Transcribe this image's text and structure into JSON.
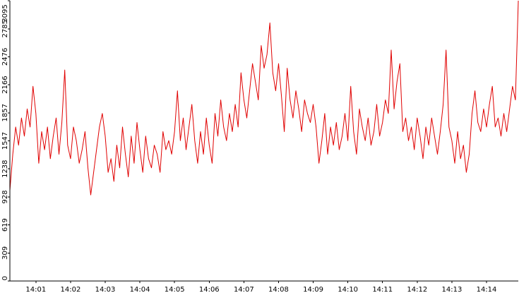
{
  "chart_data": {
    "type": "line",
    "title": "",
    "xlabel": "",
    "ylabel": "",
    "ylim": [
      0,
      3095
    ],
    "xlim": [
      "14:00:15",
      "14:14:55"
    ],
    "grid": false,
    "legend": "none",
    "series_color": "#e00000",
    "y_ticks": [
      0,
      309,
      619,
      928,
      1238,
      1547,
      1857,
      2166,
      2476,
      2785,
      3095
    ],
    "y_tick_labels": [
      "0",
      "309",
      "619",
      "928",
      "1238",
      "1547",
      "1857",
      "2166",
      "2476",
      "2785",
      "3095"
    ],
    "x_ticks": [
      "14:01",
      "14:02",
      "14:03",
      "14:04",
      "14:05",
      "14:06",
      "14:07",
      "14:08",
      "14:09",
      "14:10",
      "14:11",
      "14:12",
      "14:13",
      "14:14"
    ],
    "x_tick_labels": [
      "14:01",
      "14:02",
      "14:03",
      "14:04",
      "14:05",
      "14:06",
      "14:07",
      "14:08",
      "14:09",
      "14:10",
      "14:11",
      "14:12",
      "14:13",
      "14:14"
    ],
    "series": [
      {
        "x": [
          "14:00:15",
          "14:00:20",
          "14:00:25",
          "14:00:30",
          "14:00:35",
          "14:00:40",
          "14:00:45",
          "14:00:50",
          "14:00:55",
          "14:01:00",
          "14:01:05",
          "14:01:10",
          "14:01:15",
          "14:01:20",
          "14:01:25",
          "14:01:30",
          "14:01:35",
          "14:01:40",
          "14:01:45",
          "14:01:50",
          "14:01:55",
          "14:02:00",
          "14:02:05",
          "14:02:10",
          "14:02:15",
          "14:02:20",
          "14:02:25",
          "14:02:30",
          "14:02:35",
          "14:02:40",
          "14:02:45",
          "14:02:50",
          "14:02:55",
          "14:03:00",
          "14:03:05",
          "14:03:10",
          "14:03:15",
          "14:03:20",
          "14:03:25",
          "14:03:30",
          "14:03:35",
          "14:03:40",
          "14:03:45",
          "14:03:50",
          "14:03:55",
          "14:04:00",
          "14:04:05",
          "14:04:10",
          "14:04:15",
          "14:04:20",
          "14:04:25",
          "14:04:30",
          "14:04:35",
          "14:04:40",
          "14:04:45",
          "14:04:50",
          "14:04:55",
          "14:05:00",
          "14:05:05",
          "14:05:10",
          "14:05:15",
          "14:05:20",
          "14:05:25",
          "14:05:30",
          "14:05:35",
          "14:05:40",
          "14:05:45",
          "14:05:50",
          "14:05:55",
          "14:06:00",
          "14:06:05",
          "14:06:10",
          "14:06:15",
          "14:06:20",
          "14:06:25",
          "14:06:30",
          "14:06:35",
          "14:06:40",
          "14:06:45",
          "14:06:50",
          "14:06:55",
          "14:07:00",
          "14:07:05",
          "14:07:10",
          "14:07:15",
          "14:07:20",
          "14:07:25",
          "14:07:30",
          "14:07:35",
          "14:07:40",
          "14:07:45",
          "14:07:50",
          "14:07:55",
          "14:08:00",
          "14:08:05",
          "14:08:10",
          "14:08:15",
          "14:08:20",
          "14:08:25",
          "14:08:30",
          "14:08:35",
          "14:08:40",
          "14:08:45",
          "14:08:50",
          "14:08:55",
          "14:09:00",
          "14:09:05",
          "14:09:10",
          "14:09:15",
          "14:09:20",
          "14:09:25",
          "14:09:30",
          "14:09:35",
          "14:09:40",
          "14:09:45",
          "14:09:50",
          "14:09:55",
          "14:10:00",
          "14:10:05",
          "14:10:10",
          "14:10:15",
          "14:10:20",
          "14:10:25",
          "14:10:30",
          "14:10:35",
          "14:10:40",
          "14:10:45",
          "14:10:50",
          "14:10:55",
          "14:11:00",
          "14:11:05",
          "14:11:10",
          "14:11:15",
          "14:11:20",
          "14:11:25",
          "14:11:30",
          "14:11:35",
          "14:11:40",
          "14:11:45",
          "14:11:50",
          "14:11:55",
          "14:12:00",
          "14:12:05",
          "14:12:10",
          "14:12:15",
          "14:12:20",
          "14:12:25",
          "14:12:30",
          "14:12:35",
          "14:12:40",
          "14:12:45",
          "14:12:50",
          "14:12:55",
          "14:13:00",
          "14:13:05",
          "14:13:10",
          "14:13:15",
          "14:13:20",
          "14:13:25",
          "14:13:30",
          "14:13:35",
          "14:13:40",
          "14:13:45",
          "14:13:50",
          "14:13:55",
          "14:14:00",
          "14:14:05",
          "14:14:10",
          "14:14:15",
          "14:14:20",
          "14:14:25",
          "14:14:30",
          "14:14:35",
          "14:14:40",
          "14:14:45",
          "14:14:50",
          "14:14:55"
        ],
        "values": [
          1000,
          1400,
          1700,
          1500,
          1800,
          1600,
          1900,
          1700,
          2150,
          1850,
          1300,
          1650,
          1450,
          1700,
          1350,
          1600,
          1800,
          1400,
          1750,
          2330,
          1500,
          1350,
          1700,
          1550,
          1300,
          1450,
          1650,
          1250,
          950,
          1200,
          1450,
          1700,
          1850,
          1600,
          1200,
          1350,
          1100,
          1500,
          1250,
          1700,
          1400,
          1150,
          1600,
          1300,
          1750,
          1450,
          1200,
          1600,
          1350,
          1250,
          1500,
          1400,
          1200,
          1650,
          1450,
          1550,
          1400,
          1650,
          2100,
          1550,
          1800,
          1450,
          1700,
          1950,
          1550,
          1300,
          1650,
          1400,
          1800,
          1500,
          1300,
          1850,
          1600,
          2000,
          1700,
          1550,
          1850,
          1650,
          1950,
          1700,
          2300,
          2000,
          1800,
          2100,
          2400,
          2200,
          2000,
          2600,
          2350,
          2500,
          2850,
          2300,
          2100,
          2400,
          2050,
          1650,
          2350,
          2000,
          1800,
          2100,
          1900,
          1650,
          2000,
          1850,
          1750,
          1950,
          1700,
          1300,
          1550,
          1850,
          1400,
          1700,
          1500,
          1750,
          1450,
          1600,
          1850,
          1550,
          2150,
          1650,
          1400,
          1900,
          1700,
          1550,
          1800,
          1500,
          1650,
          1950,
          1600,
          1750,
          2000,
          1850,
          2550,
          1900,
          2200,
          2400,
          1650,
          1800,
          1550,
          1700,
          1450,
          1800,
          1600,
          1350,
          1700,
          1500,
          1800,
          1600,
          1400,
          1650,
          1950,
          2550,
          1700,
          1550,
          1300,
          1650,
          1350,
          1500,
          1200,
          1400,
          1850,
          2100,
          1750,
          1650,
          1900,
          1700,
          1950,
          2150,
          1700,
          1800,
          1600,
          1850,
          1650,
          1900,
          2150,
          2000,
          3095
        ]
      }
    ]
  }
}
